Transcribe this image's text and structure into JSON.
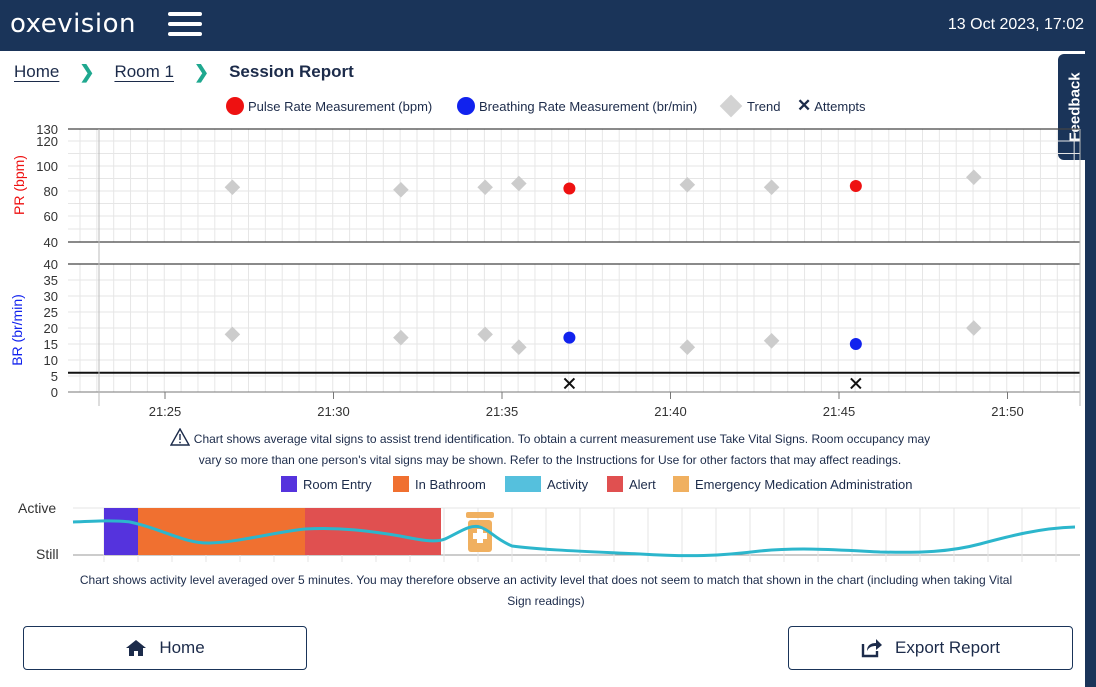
{
  "app": {
    "logo": "oxevision",
    "datetime": "13 Oct 2023, 17:02",
    "feedback": "Feedback"
  },
  "breadcrumb": {
    "home": "Home",
    "room": "Room 1",
    "current": "Session Report"
  },
  "legend": {
    "pulse": "Pulse Rate Measurement (bpm)",
    "breathing": "Breathing Rate Measurement (br/min)",
    "trend": "Trend",
    "attempts": "Attempts"
  },
  "colors": {
    "pulse": "#ee1111",
    "breathing": "#1122ee",
    "trend": "#cccccc",
    "header": "#1a3459",
    "activity_line": "#2cb6cc"
  },
  "chart_data": [
    {
      "type": "scatter",
      "title": "",
      "ylabel": "PR (bpm)",
      "ylim": [
        40,
        130
      ],
      "yticks": [
        40,
        60,
        80,
        100,
        120,
        130
      ],
      "x_time_minutes": true,
      "xticks": [
        "21:25",
        "21:30",
        "21:35",
        "21:40",
        "21:45",
        "21:50"
      ],
      "series": [
        {
          "name": "Trend",
          "points": [
            [
              "21:27",
              83
            ],
            [
              "21:32",
              81
            ],
            [
              "21:34.5",
              83
            ],
            [
              "21:35.5",
              86
            ],
            [
              "21:40.5",
              85
            ],
            [
              "21:43",
              83
            ],
            [
              "21:49",
              91
            ]
          ]
        },
        {
          "name": "Pulse Rate Measurement (bpm)",
          "points": [
            [
              "21:37",
              82
            ],
            [
              "21:45.5",
              84
            ]
          ]
        }
      ]
    },
    {
      "type": "scatter",
      "title": "",
      "ylabel": "BR (br/min)",
      "ylim": [
        0,
        40
      ],
      "yticks": [
        0,
        5,
        10,
        15,
        20,
        25,
        30,
        35,
        40
      ],
      "xticks": [
        "21:25",
        "21:30",
        "21:35",
        "21:40",
        "21:45",
        "21:50"
      ],
      "series": [
        {
          "name": "Trend",
          "points": [
            [
              "21:27",
              18
            ],
            [
              "21:32",
              17
            ],
            [
              "21:34.5",
              18
            ],
            [
              "21:35.5",
              14
            ],
            [
              "21:40.5",
              14
            ],
            [
              "21:43",
              16
            ],
            [
              "21:49",
              20
            ]
          ]
        },
        {
          "name": "Breathing Rate Measurement (br/min)",
          "points": [
            [
              "21:37",
              17
            ],
            [
              "21:45.5",
              15
            ]
          ]
        },
        {
          "name": "Attempts",
          "points": [
            [
              "21:37",
              3
            ],
            [
              "21:45.5",
              3
            ]
          ]
        }
      ]
    }
  ],
  "chart_note": {
    "line1": "Chart shows average vital signs to assist trend identification. To obtain a current measurement use Take Vital Signs. Room occupancy may",
    "line2": "vary so more than one person's vital signs may be shown. Refer to the Instructions for Use for other factors that may affect readings."
  },
  "activity": {
    "legend": [
      "Room Entry",
      "In Bathroom",
      "Activity",
      "Alert",
      "Emergency Medication Administration"
    ],
    "legend_colors": [
      "#5533dd",
      "#f07030",
      "#55c0dd",
      "#e05050",
      "#f0b060"
    ],
    "ylabels": {
      "top": "Active",
      "bottom": "Still"
    },
    "note_line1": "Chart shows activity level averaged over 5 minutes. You may therefore observe an activity level that does not seem to match that shown in the chart (including when taking Vital",
    "note_line2": "Sign readings)"
  },
  "buttons": {
    "home": "Home",
    "export": "Export Report"
  }
}
